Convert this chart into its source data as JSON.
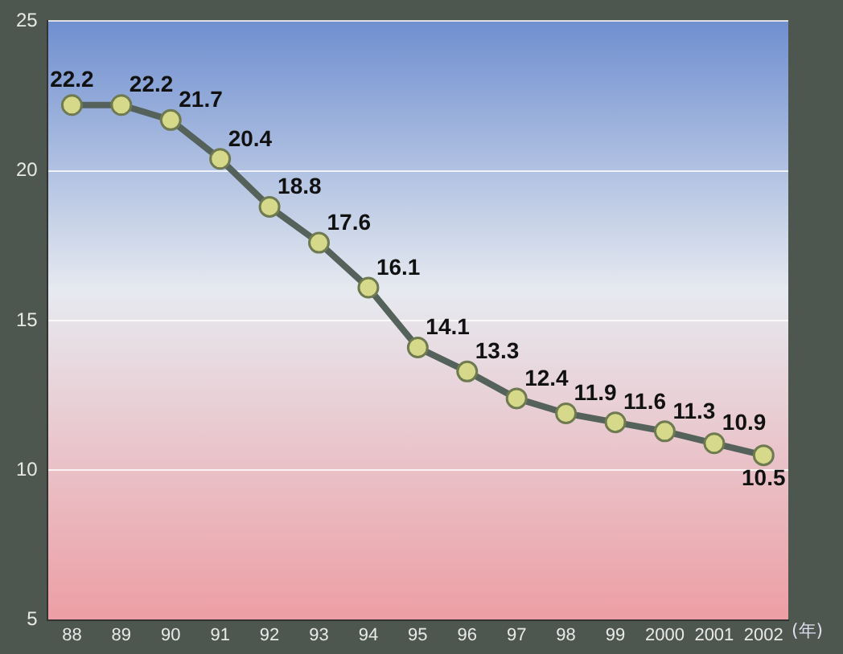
{
  "chart_data": {
    "type": "line",
    "xlabel": "(年)",
    "categories": [
      "88",
      "89",
      "90",
      "91",
      "92",
      "93",
      "94",
      "95",
      "96",
      "97",
      "98",
      "99",
      "2000",
      "2001",
      "2002"
    ],
    "series": [
      {
        "color": "#55615b",
        "values": [
          22.2,
          22.2,
          21.7,
          20.4,
          18.8,
          17.6,
          16.1,
          14.1,
          13.3,
          12.4,
          11.9,
          11.6,
          11.3,
          10.9,
          10.5
        ]
      }
    ],
    "ylim": [
      5,
      25
    ],
    "yticks": [
      5,
      10,
      15,
      20,
      25
    ],
    "grid": "y",
    "marker": "circle",
    "line_style": "solid",
    "legend": false,
    "data_labels": true
  }
}
